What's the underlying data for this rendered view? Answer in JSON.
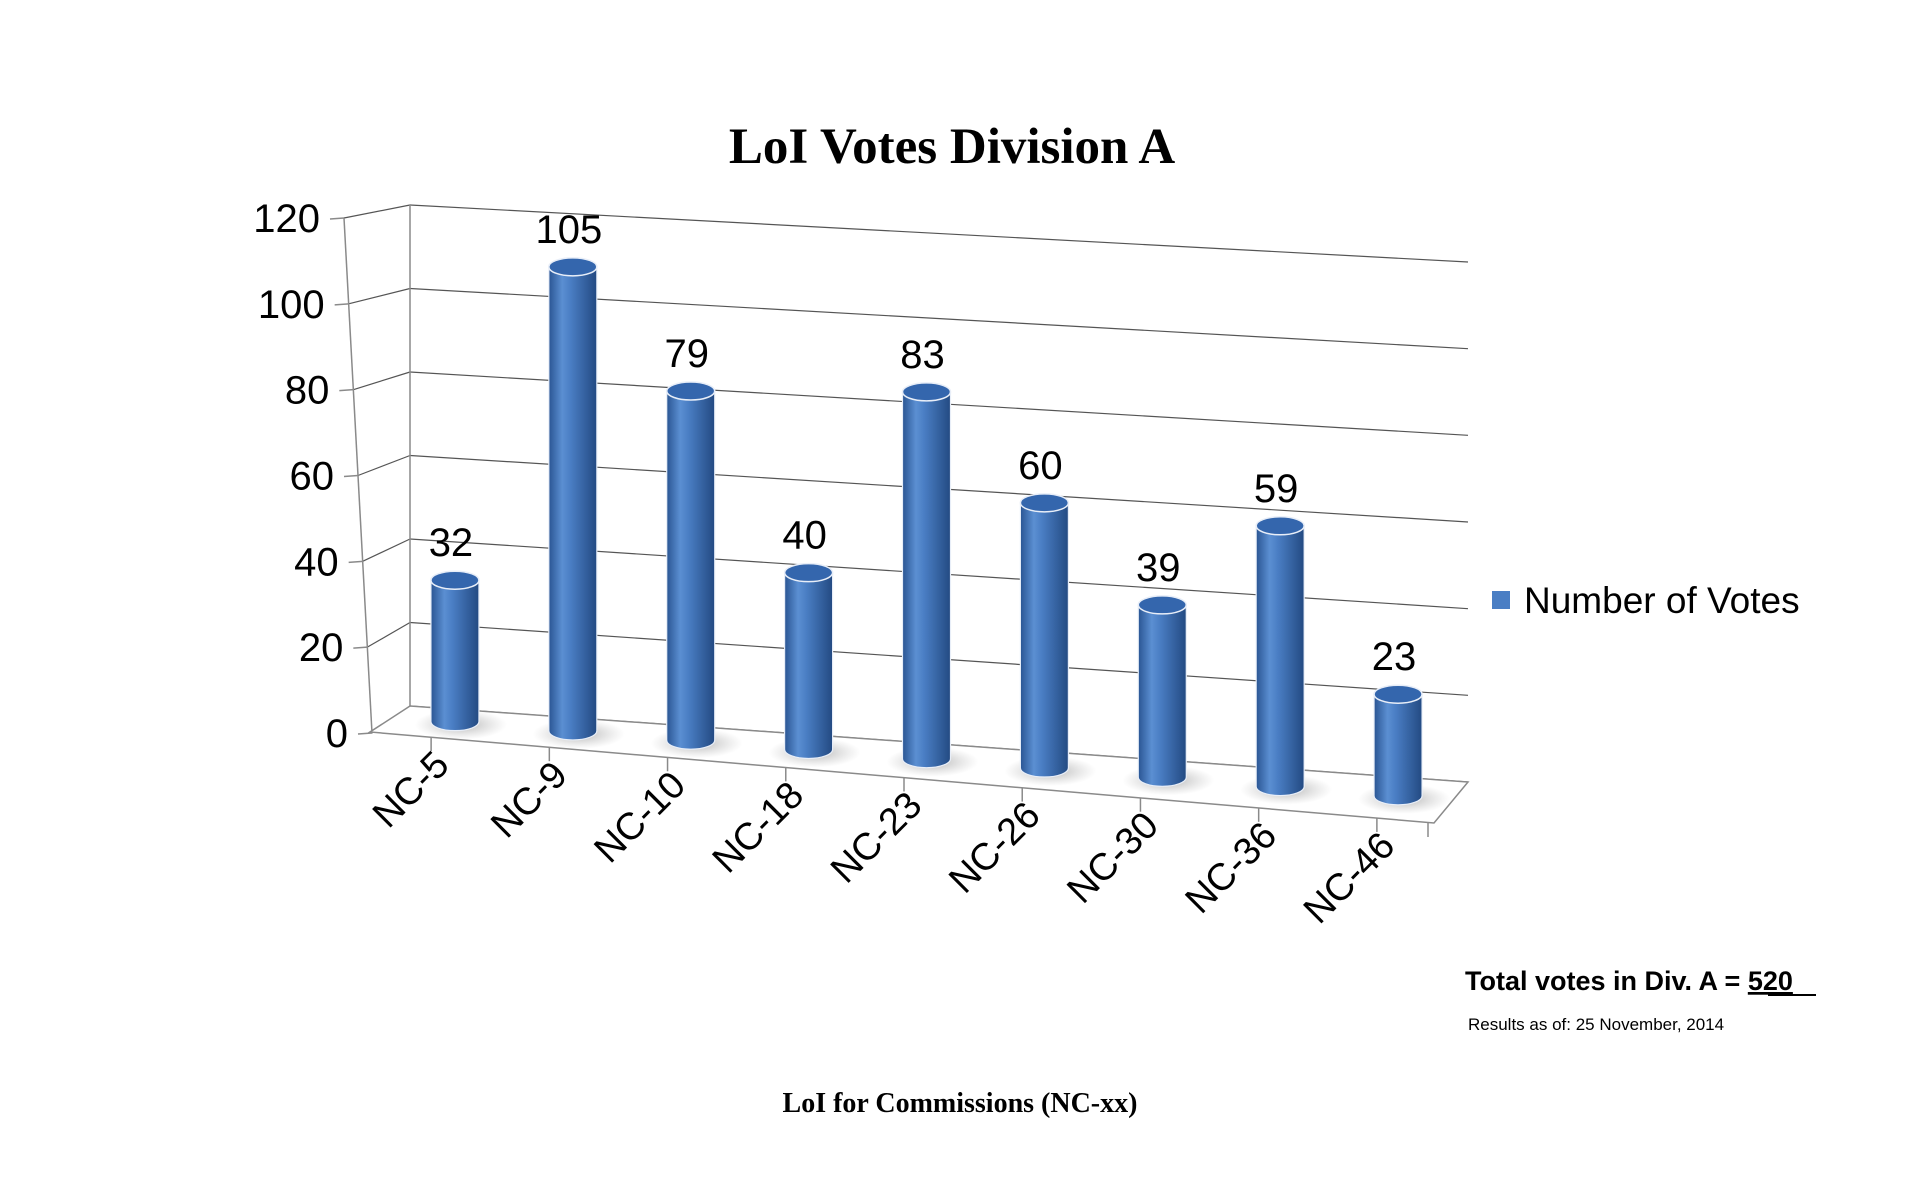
{
  "chart_data": {
    "type": "bar",
    "style": "3d-cylinder",
    "title": "LoI Votes Division A",
    "xlabel": "LoI for Commissions (NC-xx)",
    "ylabel": "",
    "categories": [
      "NC-5",
      "NC-9",
      "NC-10",
      "NC-18",
      "NC-23",
      "NC-26",
      "NC-30",
      "NC-36",
      "NC-46"
    ],
    "series": [
      {
        "name": "Number of Votes",
        "values": [
          32,
          105,
          79,
          40,
          83,
          60,
          39,
          59,
          23
        ],
        "color": "#4a7ec4"
      }
    ],
    "data_labels": [
      "32",
      "105",
      "79",
      "40",
      "83",
      "60",
      "39",
      "59",
      "23"
    ],
    "ylim": [
      0,
      120
    ],
    "yticks": [
      0,
      20,
      40,
      60,
      80,
      100,
      120
    ],
    "ytick_labels": [
      "0",
      "20",
      "40",
      "60",
      "80",
      "100",
      "120"
    ],
    "grid": true,
    "legend": {
      "position": "right",
      "label": "Number of Votes"
    }
  },
  "annotations": {
    "total_prefix": "Total votes in Div. A = ",
    "total_value": "520",
    "results_as_of": "Results as of: 25 November, 2014"
  },
  "colors": {
    "bar_dark": "#2d5b9c",
    "bar_mid": "#4a7ec4",
    "bar_light": "#7fa8dc",
    "bar_top": "#3466ad"
  }
}
